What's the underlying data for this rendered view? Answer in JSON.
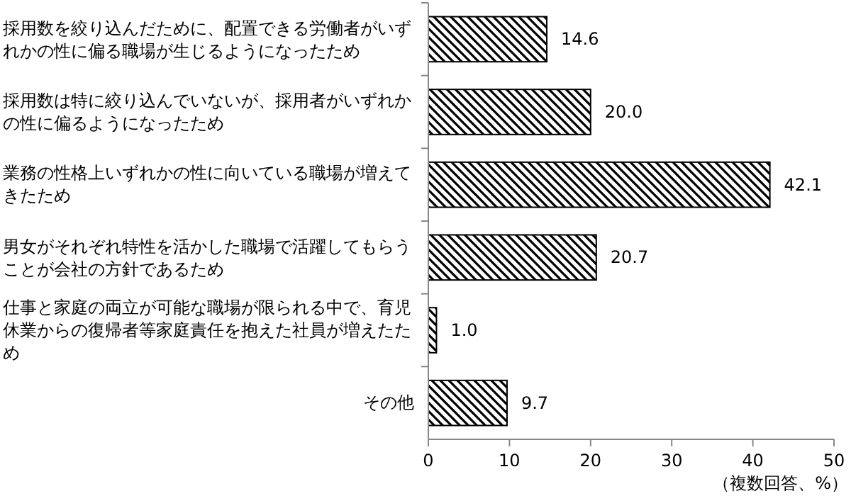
{
  "chart_data": {
    "type": "bar",
    "orientation": "horizontal",
    "xlabel": "（複数回答、%）",
    "categories": [
      "採用数を絞り込んだために、配置できる労働者がいずれかの性に偏る職場が生じるようになったため",
      "採用数は特に絞り込んでいないが、採用者がいずれかの性に偏るようになったため",
      "業務の性格上いずれかの性に向いている職場が増えてきたため",
      "男女がそれぞれ特性を活かした職場で活躍してもらうことが会社の方針であるため",
      "仕事と家庭の両立が可能な職場が限られる中で、育児休業からの復帰者等家庭責任を抱えた社員が増えたため",
      "その他"
    ],
    "values": [
      14.6,
      20.0,
      42.1,
      20.7,
      1.0,
      9.7
    ],
    "value_labels": [
      "14.6",
      "20.0",
      "42.1",
      "20.7",
      "1.0",
      "9.7"
    ],
    "color": "#000000",
    "xlim": [
      0,
      50
    ],
    "xticks": [
      0,
      10,
      20,
      30,
      40,
      50
    ],
    "grid": false
  }
}
